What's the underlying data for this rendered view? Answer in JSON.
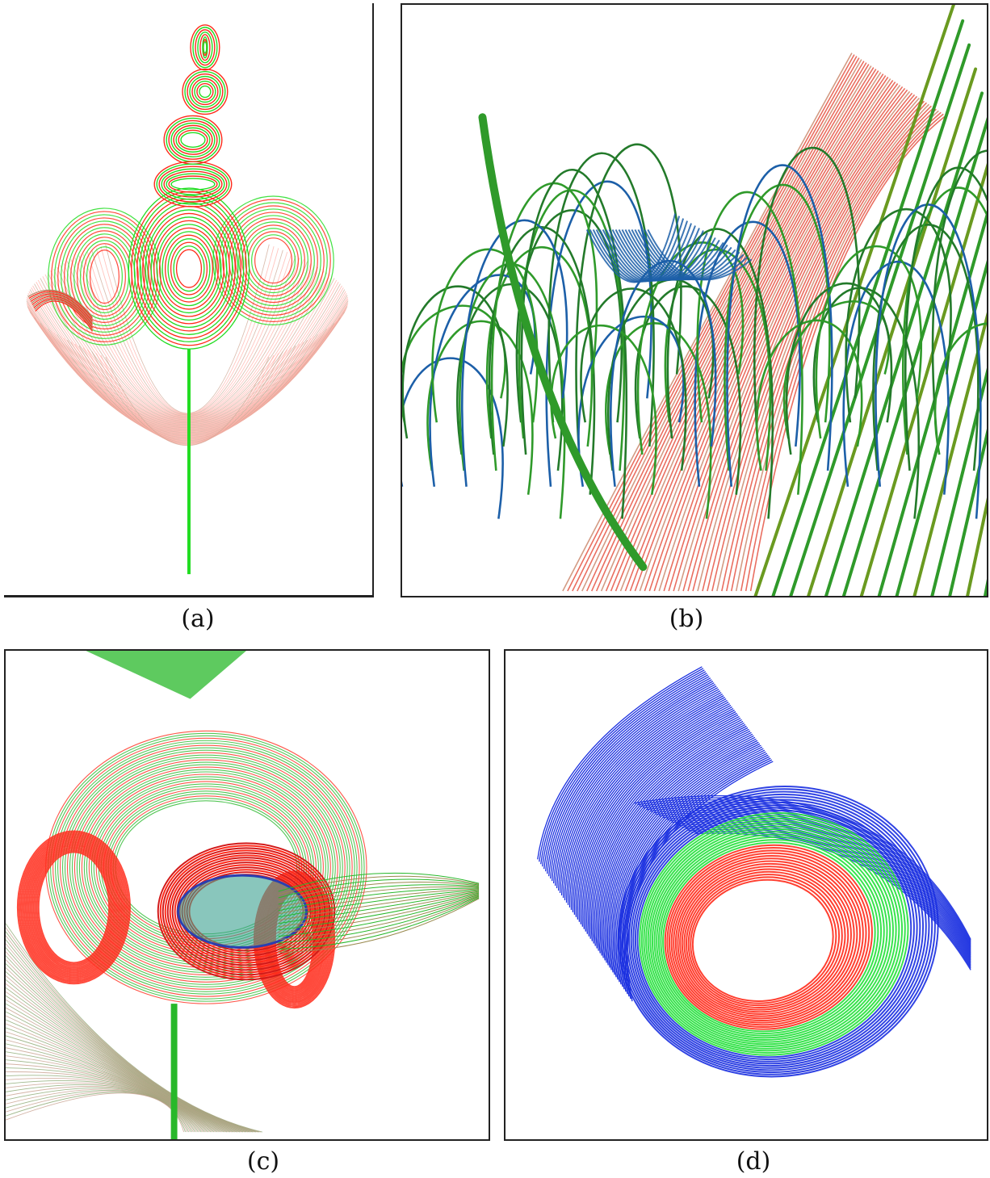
{
  "figure": {
    "panels": [
      {
        "id": "a",
        "caption": "(a)",
        "palette": [
          "#ff2a1a",
          "#22dd22",
          "#ffb0a8"
        ]
      },
      {
        "id": "b",
        "caption": "(b)",
        "palette": [
          "#2f9a2a",
          "#1c5fa8",
          "#e0301c"
        ]
      },
      {
        "id": "c",
        "caption": "(c)",
        "palette": [
          "#ff2a1a",
          "#28b82a",
          "#2a3fb0"
        ]
      },
      {
        "id": "d",
        "caption": "(d)",
        "palette": [
          "#1a2fe0",
          "#22e03a",
          "#ff2a1a"
        ]
      }
    ]
  }
}
